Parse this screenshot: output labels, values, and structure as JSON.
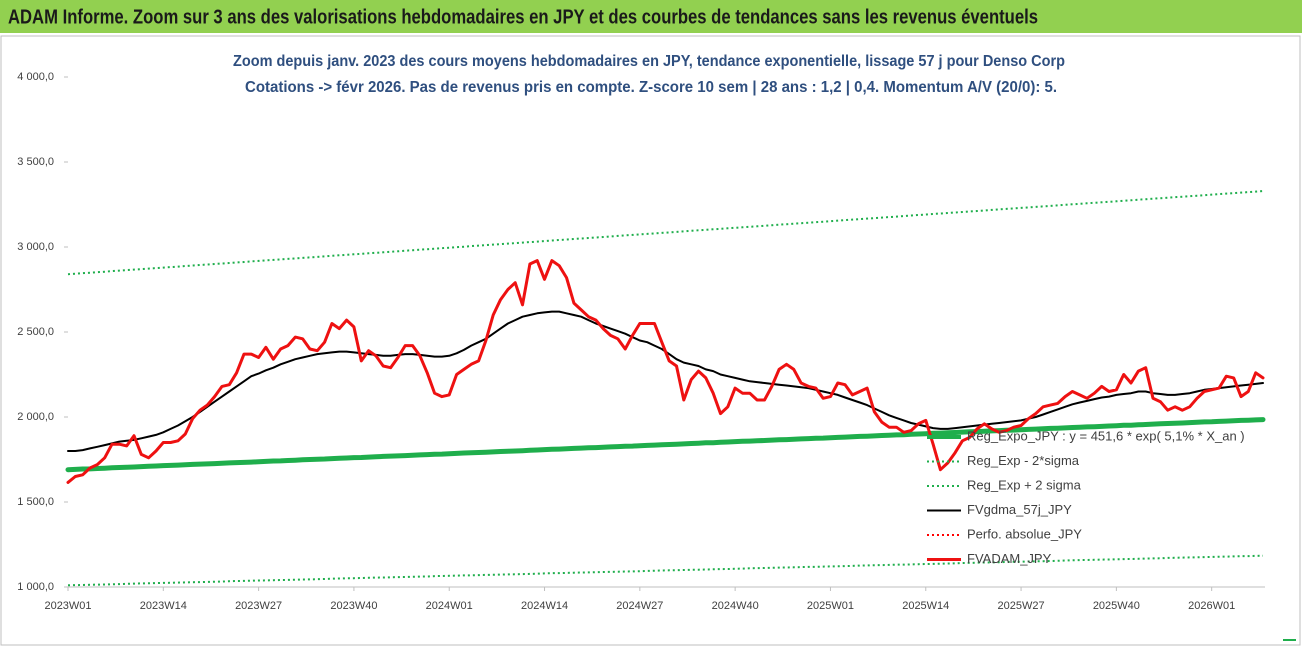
{
  "chart_data": {
    "type": "line",
    "title": "ADAM Informe. Zoom sur 3 ans des valorisations hebdomadaires en JPY et des courbes de tendances sans les revenus éventuels",
    "subtitle": [
      "Zoom depuis janv. 2023 des cours moyens hebdomadaires en JPY, tendance exponentielle, lissage 57 j pour Denso Corp",
      "Cotations -> févr 2026.  Pas de revenus pris en compte. Z-score 10 sem | 28 ans : 1,2 | 0,4. Momentum A/V (20/0): 5."
    ],
    "categories": [
      "2023W01",
      null,
      null,
      null,
      null,
      null,
      null,
      null,
      null,
      null,
      null,
      null,
      null,
      "2023W14",
      null,
      null,
      null,
      null,
      null,
      null,
      null,
      null,
      null,
      null,
      null,
      null,
      "2023W27",
      null,
      null,
      null,
      null,
      null,
      null,
      null,
      null,
      null,
      null,
      null,
      null,
      "2023W40",
      null,
      null,
      null,
      null,
      null,
      null,
      null,
      null,
      null,
      null,
      null,
      null,
      "2024W01",
      null,
      null,
      null,
      null,
      null,
      null,
      null,
      null,
      null,
      null,
      null,
      null,
      "2024W14",
      null,
      null,
      null,
      null,
      null,
      null,
      null,
      null,
      null,
      null,
      null,
      null,
      "2024W27",
      null,
      null,
      null,
      null,
      null,
      null,
      null,
      null,
      null,
      null,
      null,
      null,
      "2024W40",
      null,
      null,
      null,
      null,
      null,
      null,
      null,
      null,
      null,
      null,
      null,
      null,
      "2025W01",
      null,
      null,
      null,
      null,
      null,
      null,
      null,
      null,
      null,
      null,
      null,
      null,
      "2025W14",
      null,
      null,
      null,
      null,
      null,
      null,
      null,
      null,
      null,
      null,
      null,
      null,
      "2025W27",
      null,
      null,
      null,
      null,
      null,
      null,
      null,
      null,
      null,
      null,
      null,
      null,
      "2025W40",
      null,
      null,
      null,
      null,
      null,
      null,
      null,
      null,
      null,
      null,
      null,
      null,
      "2026W01",
      null,
      null,
      null,
      null,
      null,
      null,
      null
    ],
    "ylim": [
      1000,
      4000
    ],
    "yticks": [
      {
        "value": 1000,
        "label": "1 000,0"
      },
      {
        "value": 1500,
        "label": "1 500,0"
      },
      {
        "value": 2000,
        "label": "2 000,0"
      },
      {
        "value": 2500,
        "label": "2 500,0"
      },
      {
        "value": 3000,
        "label": "3 000,0"
      },
      {
        "value": 3500,
        "label": "3 500,0"
      },
      {
        "value": 4000,
        "label": "4 000,0"
      }
    ],
    "grid": false,
    "legend": "lower right",
    "series": [
      {
        "name": "Reg_Expo_JPY : y = 451,6 * exp( 5,1% *  X_an )",
        "color": "#1fae4c",
        "line_style": "solid",
        "values": [
          1690,
          1692,
          1694,
          1695,
          1697,
          1699,
          1701,
          1703,
          1704,
          1706,
          1708,
          1710,
          1712,
          1714,
          1715,
          1717,
          1719,
          1721,
          1723,
          1724,
          1726,
          1728,
          1730,
          1732,
          1733,
          1735,
          1737,
          1739,
          1741,
          1742,
          1744,
          1746,
          1748,
          1750,
          1752,
          1753,
          1755,
          1757,
          1759,
          1761,
          1762,
          1764,
          1766,
          1768,
          1770,
          1771,
          1773,
          1775,
          1777,
          1779,
          1781,
          1782,
          1784,
          1786,
          1788,
          1790,
          1791,
          1793,
          1795,
          1797,
          1799,
          1800,
          1802,
          1804,
          1806,
          1808,
          1810,
          1811,
          1813,
          1815,
          1817,
          1819,
          1820,
          1822,
          1824,
          1826,
          1828,
          1829,
          1831,
          1833,
          1835,
          1837,
          1838,
          1840,
          1842,
          1844,
          1846,
          1848,
          1849,
          1851,
          1853,
          1855,
          1857,
          1858,
          1860,
          1862,
          1864,
          1866,
          1867,
          1869,
          1871,
          1873,
          1875,
          1876,
          1878,
          1880,
          1882,
          1884,
          1886,
          1887,
          1889,
          1891,
          1893,
          1895,
          1896,
          1898,
          1900,
          1902,
          1904,
          1905,
          1907,
          1909,
          1911,
          1913,
          1914,
          1916,
          1918,
          1920,
          1922,
          1923,
          1925,
          1927,
          1929,
          1931,
          1933,
          1934,
          1936,
          1938,
          1940,
          1942,
          1943,
          1945,
          1947,
          1949,
          1951,
          1952,
          1954,
          1956,
          1958,
          1960,
          1962,
          1963,
          1965,
          1967,
          1969,
          1971,
          1972,
          1974,
          1976,
          1978,
          1980,
          1981,
          1983,
          1985
        ]
      },
      {
        "name": "Reg_Exp - 2*sigma",
        "color": "#1fae4c",
        "line_style": "dotted",
        "values": [
          1010,
          1011,
          1012,
          1013,
          1014,
          1015,
          1016,
          1017,
          1019,
          1020,
          1021,
          1022,
          1023,
          1024,
          1025,
          1026,
          1027,
          1028,
          1029,
          1030,
          1031,
          1032,
          1034,
          1035,
          1036,
          1037,
          1038,
          1039,
          1040,
          1041,
          1042,
          1043,
          1044,
          1045,
          1046,
          1047,
          1049,
          1050,
          1051,
          1052,
          1053,
          1054,
          1055,
          1056,
          1057,
          1058,
          1059,
          1060,
          1061,
          1062,
          1064,
          1065,
          1066,
          1067,
          1068,
          1069,
          1070,
          1071,
          1072,
          1073,
          1074,
          1075,
          1076,
          1077,
          1078,
          1080,
          1081,
          1082,
          1083,
          1084,
          1085,
          1086,
          1087,
          1088,
          1089,
          1090,
          1091,
          1092,
          1093,
          1095,
          1096,
          1097,
          1098,
          1099,
          1100,
          1101,
          1102,
          1103,
          1104,
          1105,
          1106,
          1107,
          1108,
          1110,
          1111,
          1112,
          1113,
          1114,
          1115,
          1116,
          1117,
          1118,
          1119,
          1120,
          1121,
          1122,
          1123,
          1124,
          1126,
          1127,
          1128,
          1129,
          1130,
          1131,
          1132,
          1133,
          1134,
          1135,
          1136,
          1137,
          1138,
          1139,
          1141,
          1142,
          1143,
          1144,
          1145,
          1146,
          1147,
          1148,
          1149,
          1150,
          1151,
          1152,
          1153,
          1154,
          1156,
          1157,
          1158,
          1159,
          1160,
          1161,
          1162,
          1163,
          1164,
          1165,
          1166,
          1167,
          1168,
          1169,
          1171,
          1172,
          1173,
          1174,
          1175,
          1176,
          1177,
          1178,
          1179,
          1180,
          1181,
          1182,
          1183,
          1184
        ]
      },
      {
        "name": "Reg_Exp + 2 sigma",
        "color": "#1fae4c",
        "line_style": "dotted",
        "values": [
          2840,
          2843,
          2846,
          2849,
          2852,
          2855,
          2858,
          2861,
          2864,
          2867,
          2870,
          2873,
          2876,
          2879,
          2882,
          2885,
          2888,
          2891,
          2894,
          2897,
          2900,
          2903,
          2906,
          2909,
          2912,
          2915,
          2918,
          2921,
          2924,
          2927,
          2930,
          2933,
          2936,
          2939,
          2942,
          2945,
          2948,
          2951,
          2954,
          2957,
          2960,
          2963,
          2966,
          2969,
          2972,
          2975,
          2978,
          2981,
          2984,
          2987,
          2990,
          2993,
          2996,
          2999,
          3002,
          3005,
          3008,
          3011,
          3014,
          3017,
          3020,
          3023,
          3026,
          3029,
          3032,
          3035,
          3038,
          3041,
          3044,
          3047,
          3050,
          3053,
          3056,
          3059,
          3062,
          3065,
          3068,
          3071,
          3074,
          3077,
          3080,
          3083,
          3086,
          3089,
          3092,
          3095,
          3098,
          3101,
          3104,
          3107,
          3110,
          3113,
          3116,
          3119,
          3122,
          3125,
          3128,
          3131,
          3134,
          3137,
          3140,
          3143,
          3146,
          3149,
          3152,
          3155,
          3158,
          3161,
          3164,
          3167,
          3170,
          3173,
          3176,
          3179,
          3182,
          3185,
          3188,
          3191,
          3194,
          3197,
          3200,
          3203,
          3206,
          3209,
          3212,
          3215,
          3218,
          3221,
          3224,
          3227,
          3230,
          3233,
          3236,
          3239,
          3242,
          3245,
          3248,
          3251,
          3254,
          3257,
          3260,
          3263,
          3266,
          3269,
          3272,
          3275,
          3278,
          3281,
          3284,
          3287,
          3290,
          3293,
          3296,
          3299,
          3302,
          3305,
          3308,
          3311,
          3314,
          3317,
          3320,
          3323,
          3326,
          3329
        ]
      },
      {
        "name": "FVgdma_57j_JPY",
        "color": "#000000",
        "line_style": "solid",
        "values": [
          1800,
          1800,
          1805,
          1815,
          1825,
          1835,
          1845,
          1855,
          1860,
          1865,
          1875,
          1885,
          1895,
          1910,
          1930,
          1950,
          1975,
          2000,
          2030,
          2060,
          2090,
          2120,
          2150,
          2180,
          2210,
          2240,
          2255,
          2275,
          2290,
          2310,
          2325,
          2340,
          2350,
          2360,
          2370,
          2375,
          2380,
          2385,
          2385,
          2380,
          2375,
          2370,
          2365,
          2360,
          2360,
          2365,
          2370,
          2370,
          2365,
          2360,
          2355,
          2355,
          2360,
          2375,
          2395,
          2420,
          2440,
          2460,
          2490,
          2520,
          2550,
          2570,
          2590,
          2600,
          2610,
          2615,
          2620,
          2620,
          2610,
          2600,
          2590,
          2570,
          2550,
          2535,
          2520,
          2505,
          2490,
          2470,
          2450,
          2440,
          2420,
          2400,
          2370,
          2340,
          2320,
          2310,
          2300,
          2280,
          2270,
          2250,
          2240,
          2230,
          2220,
          2210,
          2205,
          2200,
          2195,
          2190,
          2185,
          2180,
          2175,
          2170,
          2160,
          2150,
          2140,
          2130,
          2115,
          2100,
          2085,
          2070,
          2050,
          2030,
          2010,
          1995,
          1980,
          1965,
          1955,
          1945,
          1935,
          1930,
          1930,
          1935,
          1940,
          1945,
          1950,
          1955,
          1960,
          1965,
          1970,
          1975,
          1980,
          1990,
          2000,
          2015,
          2030,
          2045,
          2060,
          2075,
          2085,
          2095,
          2105,
          2115,
          2120,
          2130,
          2135,
          2140,
          2150,
          2150,
          2140,
          2135,
          2130,
          2130,
          2135,
          2140,
          2150,
          2160,
          2165,
          2170,
          2175,
          2180,
          2185,
          2190,
          2195,
          2200
        ]
      },
      {
        "name": "Perfo. absolue_JPY",
        "color": "#ff0000",
        "line_style": "dotted",
        "values": [
          null,
          null,
          null,
          null,
          null,
          null,
          null,
          null,
          null,
          null,
          null,
          null,
          null,
          null,
          null,
          null,
          null,
          null,
          null,
          null,
          null,
          null,
          null,
          null,
          null,
          null,
          null,
          null,
          null,
          null,
          null,
          null,
          null,
          null,
          null,
          null,
          null,
          null,
          null,
          null,
          null,
          null,
          null,
          null,
          null,
          null,
          null,
          null,
          null,
          null,
          null,
          null,
          null,
          null,
          null,
          null,
          null,
          null,
          null,
          null,
          null,
          null,
          null,
          null,
          null,
          null,
          null,
          null,
          null,
          null,
          null,
          null,
          null,
          null,
          null,
          null,
          null,
          null,
          null,
          null,
          null,
          null,
          null,
          null,
          null,
          null,
          null,
          null,
          null,
          null,
          null,
          null,
          null,
          null,
          null,
          null,
          null,
          null,
          null,
          null,
          null,
          null,
          null,
          null,
          null,
          null,
          null,
          null,
          null,
          null,
          null,
          null,
          null,
          null,
          null,
          null,
          null,
          null,
          null,
          null,
          null,
          null,
          null,
          null,
          null,
          null,
          null,
          null,
          null,
          null,
          null,
          null,
          null,
          null,
          null,
          null,
          null,
          null,
          null,
          null,
          null,
          null,
          null,
          null,
          null,
          null,
          null,
          null,
          null,
          null,
          null,
          null,
          null,
          null,
          null,
          null,
          null,
          null,
          null,
          null,
          null,
          null,
          null,
          null
        ]
      },
      {
        "name": "FVADAM_JPY",
        "color": "#ee1111",
        "line_style": "solid",
        "values": [
          1615,
          1650,
          1660,
          1700,
          1720,
          1760,
          1840,
          1840,
          1830,
          1890,
          1780,
          1760,
          1800,
          1850,
          1850,
          1860,
          1900,
          1990,
          2040,
          2070,
          2120,
          2180,
          2190,
          2260,
          2370,
          2370,
          2350,
          2410,
          2340,
          2400,
          2420,
          2470,
          2460,
          2400,
          2390,
          2440,
          2550,
          2520,
          2570,
          2530,
          2330,
          2390,
          2360,
          2300,
          2290,
          2350,
          2420,
          2420,
          2360,
          2260,
          2140,
          2120,
          2130,
          2250,
          2280,
          2310,
          2330,
          2450,
          2600,
          2690,
          2750,
          2790,
          2660,
          2900,
          2920,
          2810,
          2920,
          2890,
          2820,
          2670,
          2630,
          2590,
          2570,
          2520,
          2480,
          2460,
          2400,
          2480,
          2550,
          2550,
          2550,
          2440,
          2330,
          2300,
          2100,
          2220,
          2270,
          2230,
          2140,
          2020,
          2060,
          2170,
          2140,
          2140,
          2100,
          2100,
          2180,
          2280,
          2310,
          2280,
          2200,
          2180,
          2170,
          2110,
          2120,
          2200,
          2190,
          2130,
          2150,
          2170,
          2030,
          1970,
          1940,
          1940,
          1910,
          1920,
          1960,
          1980,
          1840,
          1690,
          1730,
          1790,
          1860,
          1880,
          1930,
          1960,
          1930,
          1910,
          1920,
          1940,
          1950,
          1990,
          2020,
          2060,
          2070,
          2080,
          2120,
          2150,
          2130,
          2110,
          2140,
          2180,
          2150,
          2160,
          2250,
          2200,
          2270,
          2290,
          2110,
          2090,
          2040,
          2060,
          2040,
          2060,
          2110,
          2150,
          2160,
          2170,
          2240,
          2230,
          2120,
          2150,
          2260,
          2230
        ]
      }
    ]
  }
}
